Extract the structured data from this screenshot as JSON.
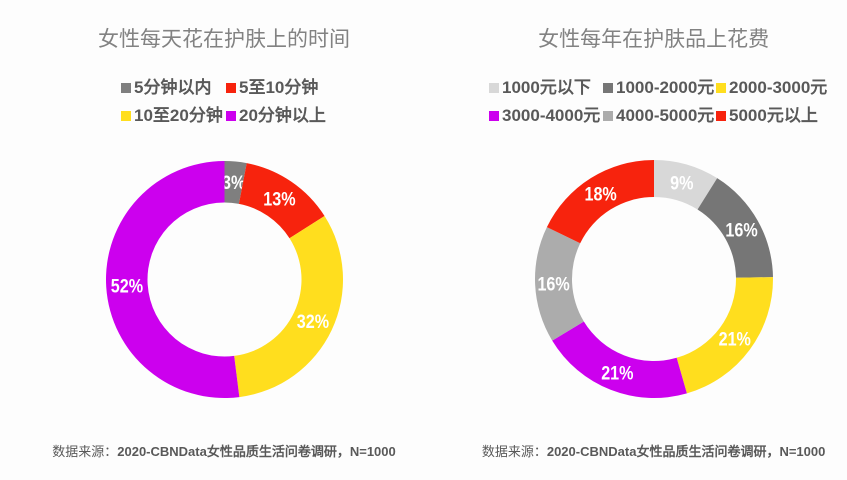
{
  "background_color": "#FDFDFD",
  "text_colors": {
    "title": "#828282",
    "legend": "#595959",
    "source": "#595959",
    "slice_label": "#FFFFFF"
  },
  "chart_data": [
    {
      "type": "pie",
      "subtype": "donut",
      "title": "女性每天花在护肤上的时间",
      "categories": [
        "5分钟以内",
        "5至10分钟",
        "10至20分钟",
        "20分钟以上"
      ],
      "values": [
        3,
        13,
        32,
        52
      ],
      "value_labels": [
        "3%",
        "13%",
        "32%",
        "52%"
      ],
      "colors": [
        "#7F7F7F",
        "#F7230D",
        "#FFDE1E",
        "#CC00EE"
      ],
      "legend_position": "top",
      "legend_rows": [
        [
          0,
          1
        ],
        [
          2,
          3
        ]
      ],
      "start_angle_deg": 0,
      "direction": "clockwise",
      "source_prefix": "数据来源：",
      "source_text": "2020-CBNData女性品质生活问卷调研，N=1000"
    },
    {
      "type": "pie",
      "subtype": "donut",
      "title": "女性每年在护肤品上花费",
      "categories": [
        "1000元以下",
        "1000-2000元",
        "2000-3000元",
        "3000-4000元",
        "4000-5000元",
        "5000元以上"
      ],
      "values": [
        9,
        16,
        21,
        21,
        16,
        18
      ],
      "value_labels": [
        "9%",
        "16%",
        "21%",
        "21%",
        "16%",
        "18%"
      ],
      "colors": [
        "#D8D8D8",
        "#767676",
        "#FFDE1E",
        "#CC00EE",
        "#ACACAC",
        "#F7230D"
      ],
      "legend_position": "top",
      "legend_rows": [
        [
          0,
          1,
          2
        ],
        [
          3,
          4,
          5
        ]
      ],
      "start_angle_deg": 0,
      "direction": "clockwise",
      "source_prefix": "数据来源：",
      "source_text": "2020-CBNData女性品质生活问卷调研，N=1000"
    }
  ]
}
